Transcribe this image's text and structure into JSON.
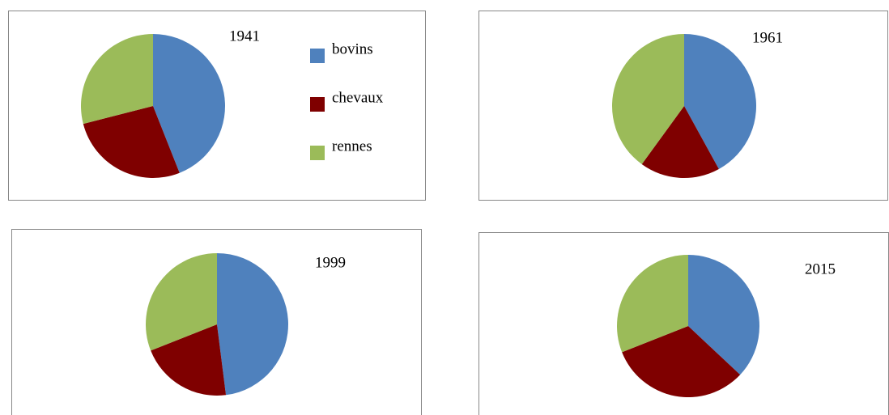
{
  "chart_data": [
    {
      "type": "pie",
      "title": "1941",
      "categories": [
        "bovins",
        "chevaux",
        "rennes"
      ],
      "colors": [
        "#4f81bd",
        "#7f0000",
        "#9bbb59"
      ],
      "values": [
        44,
        27,
        29
      ],
      "legend": "right"
    },
    {
      "type": "pie",
      "title": "1961",
      "values": [
        42,
        18,
        40
      ]
    },
    {
      "type": "pie",
      "title": "1999",
      "values": [
        48,
        21,
        31
      ]
    },
    {
      "type": "pie",
      "title": "2015",
      "values": [
        37,
        32,
        31
      ]
    }
  ]
}
